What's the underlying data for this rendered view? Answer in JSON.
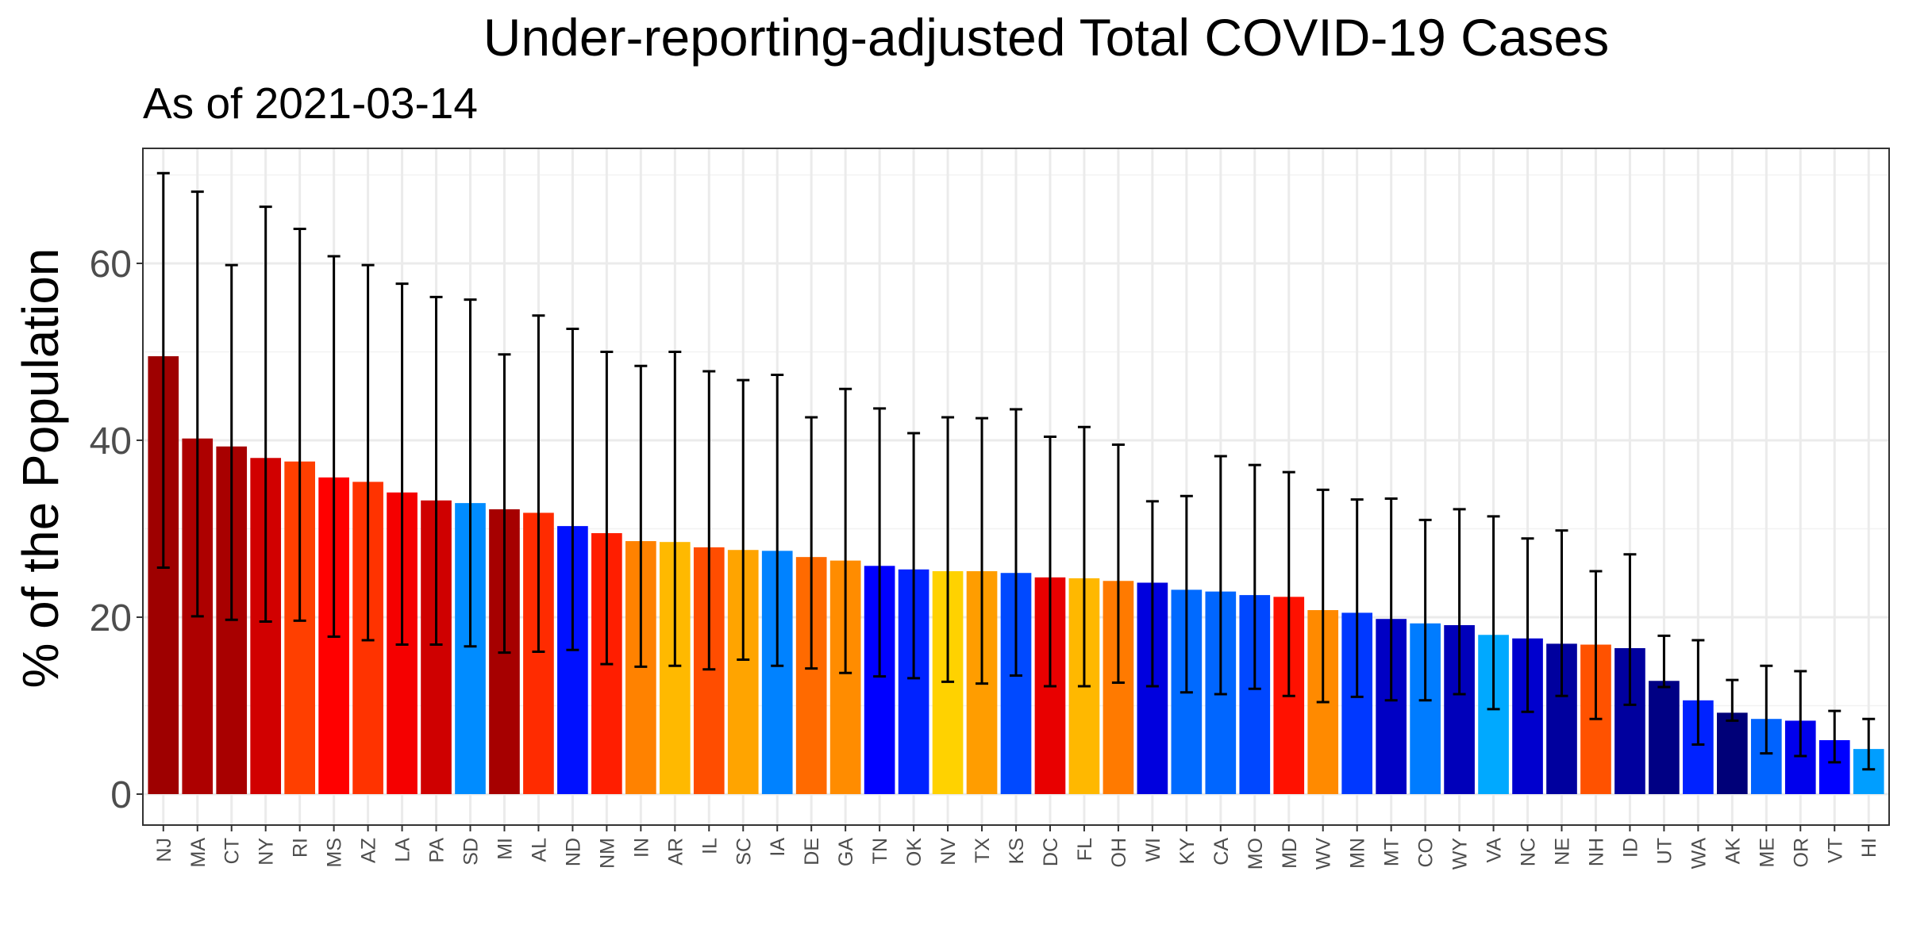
{
  "chart_data": {
    "type": "bar",
    "title": "Under-reporting-adjusted Total COVID-19 Cases",
    "subtitle": "As of 2021-03-14",
    "xlabel": "",
    "ylabel": "% of the Population",
    "ylim": [
      -3.5,
      73
    ],
    "yticks": [
      0,
      20,
      40,
      60
    ],
    "grid": true,
    "error_bars": true,
    "categories": [
      "NJ",
      "MA",
      "CT",
      "NY",
      "RI",
      "MS",
      "AZ",
      "LA",
      "PA",
      "SD",
      "MI",
      "AL",
      "ND",
      "NM",
      "IN",
      "AR",
      "IL",
      "SC",
      "IA",
      "DE",
      "GA",
      "TN",
      "OK",
      "NV",
      "TX",
      "KS",
      "DC",
      "FL",
      "OH",
      "WI",
      "KY",
      "CA",
      "MO",
      "MD",
      "WV",
      "MN",
      "MT",
      "CO",
      "WY",
      "VA",
      "NC",
      "NE",
      "NH",
      "ID",
      "UT",
      "WA",
      "AK",
      "ME",
      "OR",
      "VT",
      "HI"
    ],
    "values": [
      49.5,
      40.2,
      39.3,
      38.0,
      37.6,
      35.8,
      35.3,
      34.1,
      33.2,
      32.9,
      32.2,
      31.8,
      30.3,
      29.5,
      28.6,
      28.5,
      27.9,
      27.6,
      27.5,
      26.8,
      26.4,
      25.8,
      25.4,
      25.2,
      25.2,
      25.0,
      24.5,
      24.4,
      24.1,
      23.9,
      23.1,
      22.9,
      22.5,
      22.3,
      20.8,
      20.5,
      19.8,
      19.3,
      19.1,
      18.0,
      17.6,
      17.0,
      16.9,
      16.5,
      12.8,
      10.6,
      9.2,
      8.5,
      8.3,
      6.1,
      5.1
    ],
    "lower": [
      25.6,
      20.1,
      19.7,
      19.5,
      19.6,
      17.8,
      17.4,
      16.9,
      16.9,
      16.7,
      16.0,
      16.1,
      16.3,
      14.7,
      14.4,
      14.5,
      14.1,
      15.2,
      14.5,
      14.2,
      13.7,
      13.3,
      13.1,
      12.7,
      12.5,
      13.4,
      12.2,
      12.2,
      12.6,
      12.2,
      11.5,
      11.3,
      11.9,
      11.1,
      10.4,
      11.0,
      10.6,
      10.6,
      11.3,
      9.6,
      9.3,
      11.1,
      8.5,
      10.1,
      12.1,
      5.6,
      8.3,
      4.6,
      4.3,
      3.6,
      2.8
    ],
    "upper": [
      70.2,
      68.1,
      59.8,
      66.4,
      63.9,
      60.8,
      59.8,
      57.7,
      56.2,
      55.9,
      49.7,
      54.1,
      52.6,
      50.0,
      48.4,
      50.0,
      47.8,
      46.8,
      47.4,
      42.6,
      45.8,
      43.6,
      40.8,
      42.6,
      42.5,
      43.5,
      40.4,
      41.5,
      39.5,
      33.1,
      33.7,
      38.2,
      37.2,
      36.4,
      34.4,
      33.3,
      33.4,
      31.0,
      32.2,
      31.4,
      28.9,
      29.8,
      25.2,
      27.1,
      17.9,
      17.4,
      12.9,
      14.5,
      13.9,
      9.4,
      8.5
    ],
    "colors": [
      "#9E0000",
      "#AD0000",
      "#A80000",
      "#D10000",
      "#FF3F00",
      "#FF0000",
      "#FF3300",
      "#F50000",
      "#CF0000",
      "#008CFF",
      "#A60000",
      "#FF2B00",
      "#0010FF",
      "#FF1E00",
      "#FF8200",
      "#FFB900",
      "#FF4D00",
      "#FFA400",
      "#0082FF",
      "#FF6A00",
      "#FF8C00",
      "#0000FF",
      "#0022FF",
      "#FFD200",
      "#FF9D00",
      "#0049FF",
      "#E80000",
      "#FFB800",
      "#FF7A00",
      "#0000DE",
      "#006AFF",
      "#0066FF",
      "#0047FF",
      "#FF1100",
      "#FF8A00",
      "#0038FF",
      "#0000C4",
      "#007CFF",
      "#0000BA",
      "#00A9FF",
      "#0000CE",
      "#00009E",
      "#FF5200",
      "#00009E",
      "#000084",
      "#0022FF",
      "#000078",
      "#0063FF",
      "#0000EC",
      "#0000FF",
      "#009EFF"
    ]
  }
}
